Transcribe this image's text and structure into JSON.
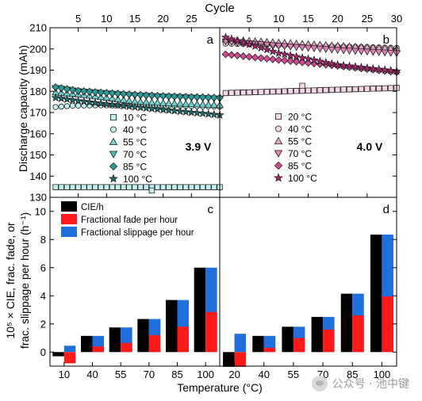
{
  "figure": {
    "top_axis_label": "Cycle",
    "y_label_top": "Discharge capacity (mAh)",
    "y_label_bottom_line1": "10⁵ × CIE, frac. fade, or",
    "y_label_bottom_line2": "frac. slippage per hour (h⁻¹)",
    "x_label_bottom": "Temperature (°C)",
    "watermark": "公众号 · 池中键"
  },
  "colors": {
    "cie": "#000000",
    "fade": "#ff1a1a",
    "slippage": "#1f6fdc",
    "left_shades": [
      "#bff0ec",
      "#6fd3cf",
      "#46bcbc",
      "#2a9a9a",
      "#1d6e6e"
    ],
    "right_shades": [
      "#f4d7e6",
      "#e6a8c8",
      "#dd7fb1",
      "#cf4a91",
      "#b51f72"
    ]
  },
  "chart_data": [
    {
      "panel": "a",
      "type": "scatter",
      "voltage_label": "3.9 V",
      "xlabel": "Cycle",
      "ylabel": "Discharge capacity (mAh)",
      "xlim": [
        0,
        30
      ],
      "ylim": [
        130,
        210
      ],
      "x_ticks": [
        5,
        10,
        15,
        20,
        25
      ],
      "y_ticks": [
        130,
        140,
        150,
        160,
        170,
        180,
        190,
        200,
        210
      ],
      "legend_position": "center",
      "series": [
        {
          "name": "10 °C",
          "marker": "square",
          "points": [
            [
              1,
              134.8
            ],
            [
              30,
              134.8
            ]
          ],
          "outlier": [
            18,
            133.2
          ]
        },
        {
          "name": "40 °C",
          "marker": "circle",
          "points": [
            [
              1,
              172.6
            ],
            [
              4,
              173.2
            ],
            [
              8,
              173.4
            ],
            [
              15,
              173.3
            ],
            [
              22,
              173.2
            ],
            [
              30,
              172.8
            ]
          ]
        },
        {
          "name": "55 °C",
          "marker": "triangle-up",
          "points": [
            [
              1,
              179.5
            ],
            [
              5,
              178.6
            ],
            [
              10,
              177
            ],
            [
              15,
              175.2
            ],
            [
              20,
              174.5
            ],
            [
              30,
              173.5
            ]
          ]
        },
        {
          "name": "70 °C",
          "marker": "triangle-down",
          "points": [
            [
              1,
              181.5
            ],
            [
              5,
              180
            ],
            [
              10,
              179
            ],
            [
              15,
              178
            ],
            [
              20,
              177.5
            ],
            [
              30,
              176.5
            ]
          ]
        },
        {
          "name": "85 °C",
          "marker": "diamond",
          "points": [
            [
              1,
              182
            ],
            [
              5,
              180.3
            ],
            [
              10,
              179.3
            ],
            [
              15,
              178.5
            ],
            [
              20,
              177.8
            ],
            [
              30,
              177
            ]
          ]
        },
        {
          "name": "100 °C",
          "marker": "star",
          "points": [
            [
              1,
              177
            ],
            [
              5,
              175.5
            ],
            [
              10,
              174
            ],
            [
              15,
              172.6
            ],
            [
              20,
              171.3
            ],
            [
              30,
              168.8
            ]
          ]
        }
      ]
    },
    {
      "panel": "b",
      "type": "scatter",
      "voltage_label": "4.0 V",
      "xlabel": "Cycle",
      "xlim": [
        0,
        30
      ],
      "ylim": [
        130,
        210
      ],
      "x_ticks": [
        5,
        10,
        15,
        20,
        25,
        30
      ],
      "legend_position": "center",
      "series": [
        {
          "name": "20 °C",
          "marker": "square",
          "points": [
            [
              1,
              179.2
            ],
            [
              30,
              181.6
            ]
          ],
          "outlier": [
            14,
            182.6
          ]
        },
        {
          "name": "40 °C",
          "marker": "circle",
          "points": [
            [
              1,
              202.5
            ],
            [
              10,
              201.8
            ],
            [
              20,
              201.2
            ],
            [
              30,
              200.5
            ]
          ]
        },
        {
          "name": "55 °C",
          "marker": "triangle-up",
          "points": [
            [
              1,
              204.5
            ],
            [
              10,
              203
            ],
            [
              20,
              201.5
            ],
            [
              30,
              200
            ]
          ]
        },
        {
          "name": "70 °C",
          "marker": "triangle-down",
          "points": [
            [
              1,
              203.5
            ],
            [
              10,
              201.5
            ],
            [
              20,
              199.5
            ],
            [
              30,
              198
            ]
          ]
        },
        {
          "name": "85 °C",
          "marker": "diamond",
          "points": [
            [
              1,
              197.5
            ],
            [
              10,
              194.8
            ],
            [
              20,
              192
            ],
            [
              30,
              189
            ]
          ]
        },
        {
          "name": "100 °C",
          "marker": "star",
          "points": [
            [
              1,
              205.5
            ],
            [
              10,
              198
            ],
            [
              20,
              192.5
            ],
            [
              30,
              189.5
            ]
          ]
        }
      ]
    },
    {
      "panel": "c",
      "type": "bar",
      "xlabel": "Temperature (°C)",
      "categories": [
        "10",
        "40",
        "55",
        "70",
        "85",
        "100"
      ],
      "ylim": [
        -1,
        11
      ],
      "y_ticks": [
        0,
        2,
        4,
        6,
        8,
        10
      ],
      "legend_position": "top-left",
      "series": [
        {
          "name": "CIE/h",
          "values": [
            -0.3,
            1.15,
            1.75,
            2.35,
            3.7,
            6.0
          ]
        },
        {
          "name": "Fractional fade per hour",
          "values": [
            -0.8,
            0.4,
            0.65,
            1.2,
            1.8,
            2.85
          ]
        },
        {
          "name": "Fractional slippage per hour",
          "values": [
            0.45,
            1.15,
            1.75,
            2.35,
            3.7,
            6.0
          ]
        }
      ]
    },
    {
      "panel": "d",
      "type": "bar",
      "xlabel": "Temperature (°C)",
      "categories": [
        "20",
        "40",
        "55",
        "70",
        "85",
        "100"
      ],
      "ylim": [
        -1,
        11
      ],
      "series": [
        {
          "name": "CIE/h",
          "values": [
            -1.05,
            1.15,
            1.8,
            2.5,
            4.15,
            8.35
          ]
        },
        {
          "name": "Fractional fade per hour",
          "values": [
            -1.05,
            0.3,
            1.0,
            1.6,
            2.6,
            3.95
          ]
        },
        {
          "name": "Fractional slippage per hour",
          "values": [
            1.3,
            1.15,
            1.8,
            2.5,
            4.15,
            8.35
          ]
        }
      ]
    }
  ]
}
